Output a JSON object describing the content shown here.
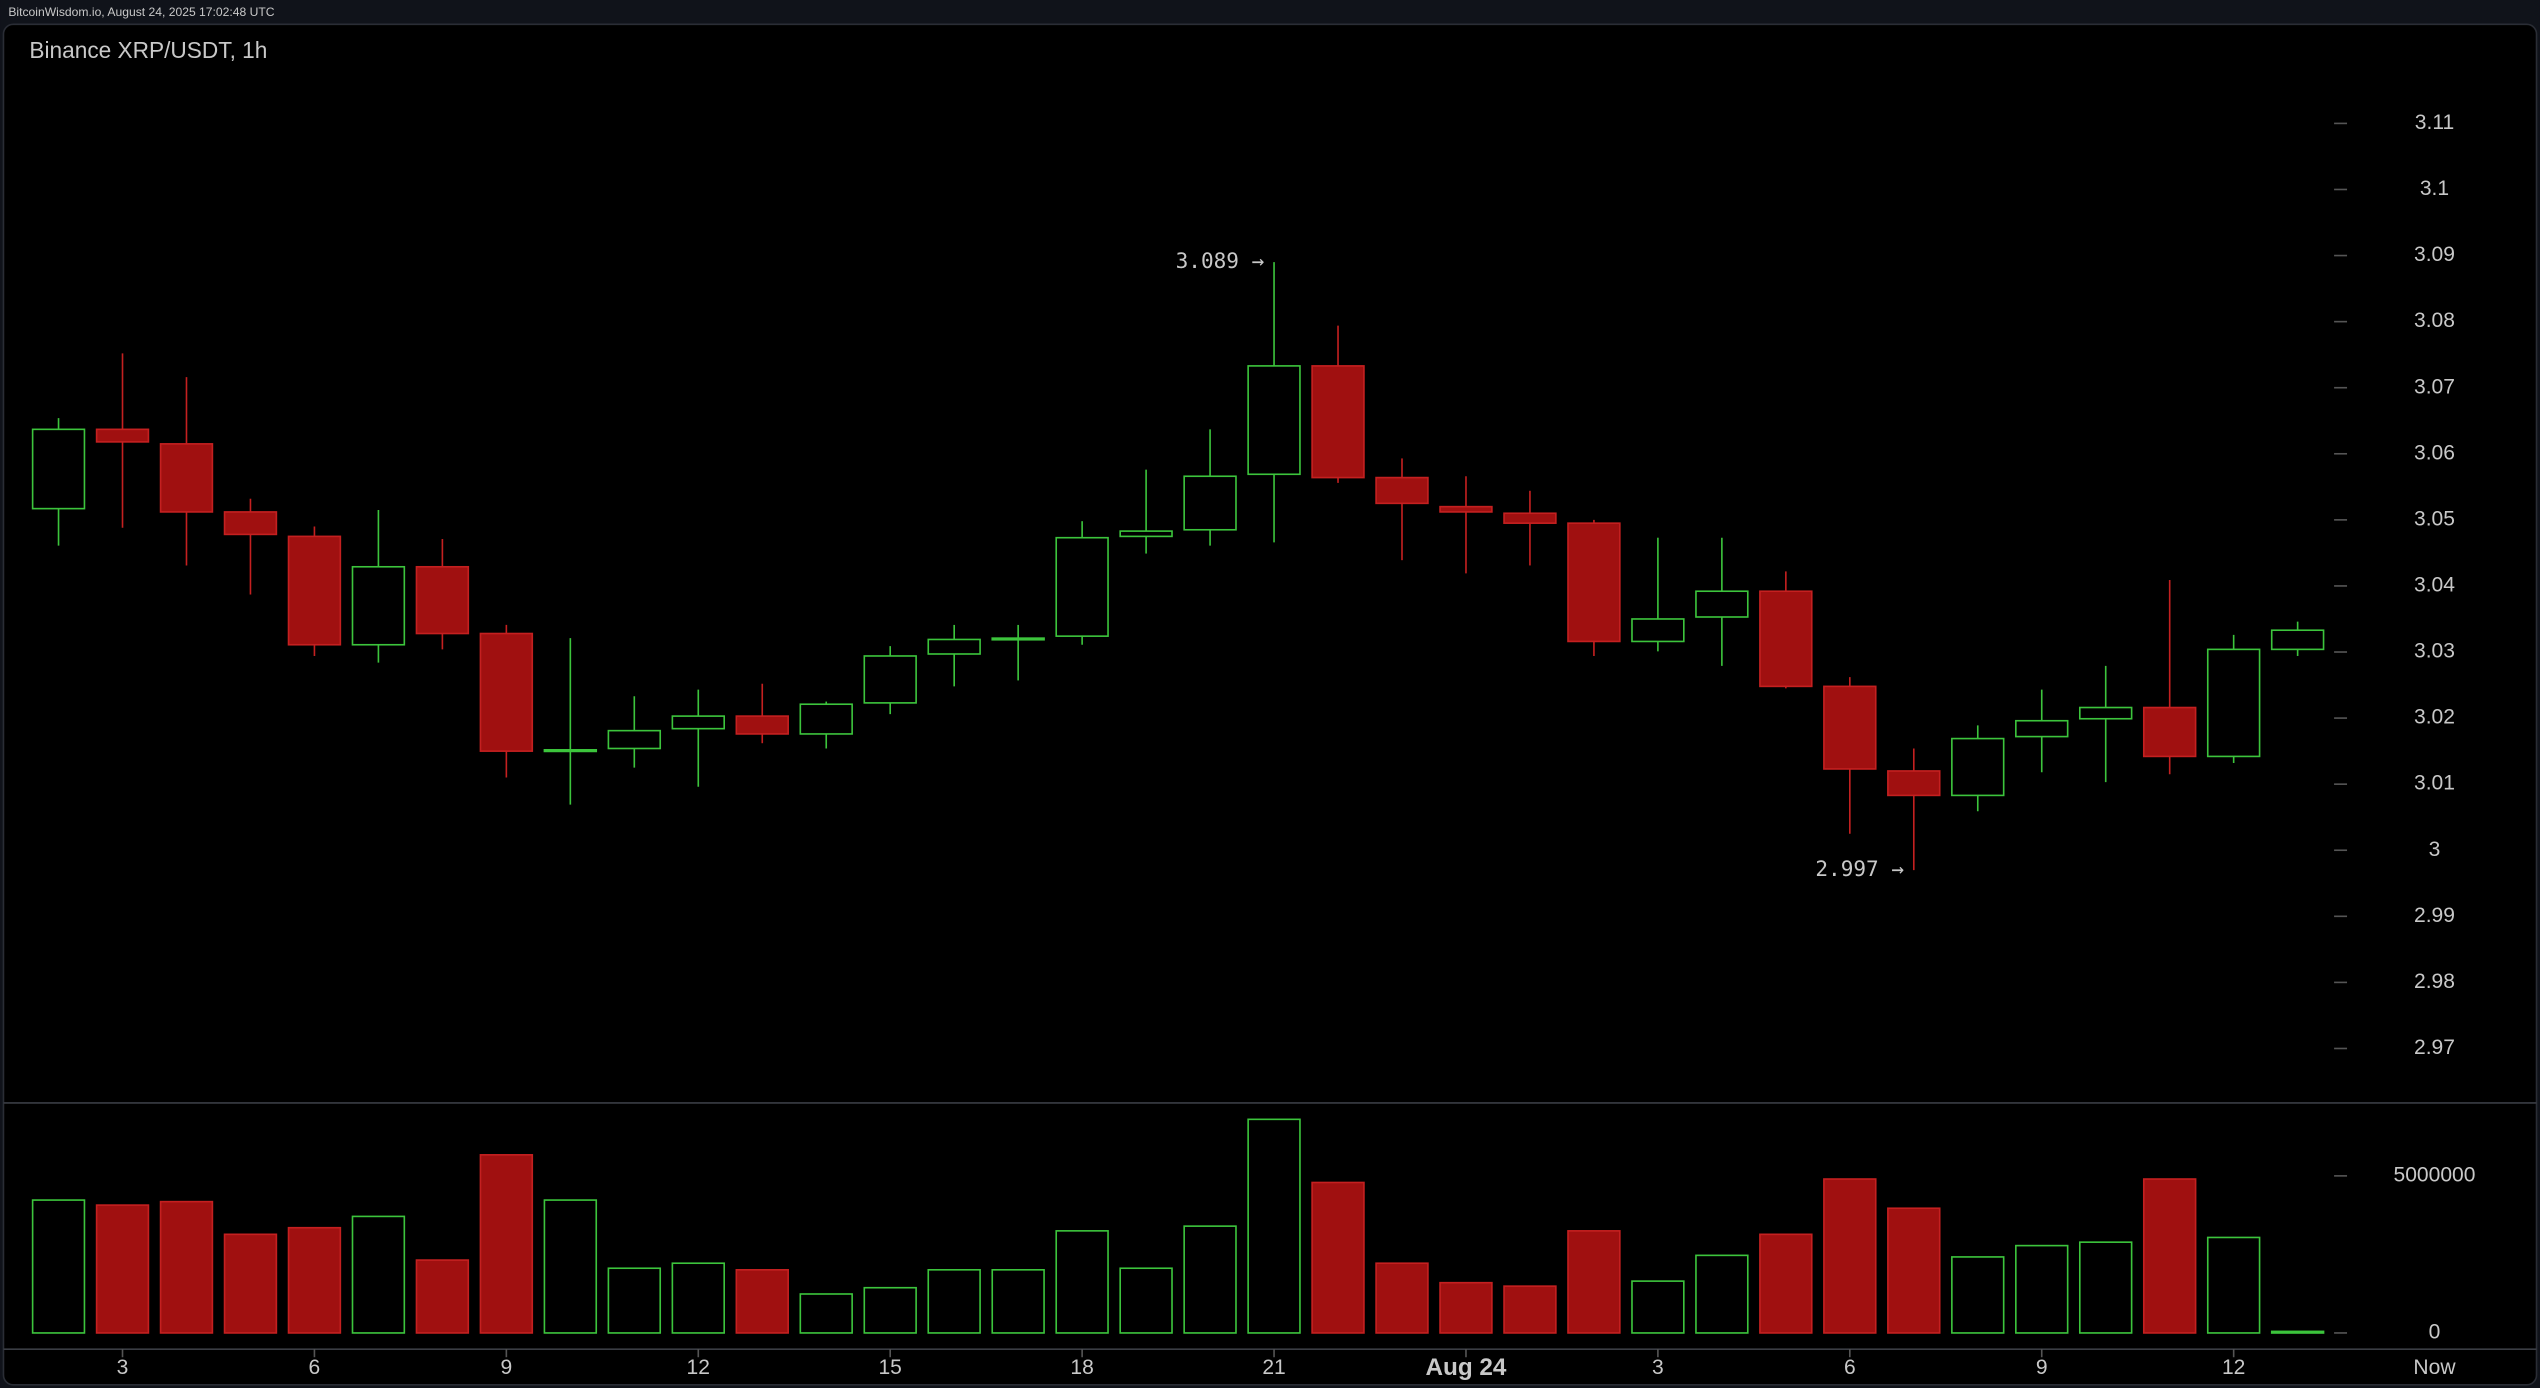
{
  "header": "BitcoinWisdom.io, August 24, 2025 17:02:48 UTC",
  "chart_data": [
    {
      "type": "candlestick",
      "title": "Binance XRP/USDT, 1h",
      "categories": [
        null,
        "3",
        null,
        null,
        "6",
        null,
        null,
        "9",
        null,
        null,
        "12",
        null,
        null,
        "15",
        null,
        null,
        "18",
        null,
        null,
        "21",
        null,
        null,
        "Aug 24",
        null,
        null,
        "3",
        null,
        null,
        "6",
        null,
        null,
        "9",
        null,
        null,
        "12",
        null
      ],
      "now_label": "Now",
      "open": [
        3.0517,
        3.0637,
        3.0615,
        3.0512,
        3.0475,
        3.0311,
        3.0429,
        3.0328,
        3.015,
        3.0154,
        3.0184,
        3.0203,
        3.0176,
        3.0223,
        3.0297,
        3.0319,
        3.0324,
        3.0475,
        3.0485,
        3.0569,
        3.0733,
        3.0564,
        3.052,
        3.051,
        3.0495,
        3.0316,
        3.0353,
        3.0392,
        3.0248,
        3.012,
        3.0083,
        3.0172,
        3.0199,
        3.0216,
        3.0142,
        3.0304
      ],
      "high": [
        3.0654,
        3.0752,
        3.0716,
        3.0532,
        3.049,
        3.0515,
        3.0471,
        3.0341,
        3.0321,
        3.0233,
        3.0243,
        3.0252,
        3.0225,
        3.0309,
        3.0341,
        3.0341,
        3.0498,
        3.0576,
        3.0637,
        3.089,
        3.0794,
        3.0593,
        3.0566,
        3.0544,
        3.05,
        3.0473,
        3.0473,
        3.0422,
        3.0262,
        3.0154,
        3.0189,
        3.0243,
        3.0279,
        3.0409,
        3.0326,
        3.0346
      ],
      "low": [
        3.0461,
        3.0488,
        3.0431,
        3.0387,
        3.0294,
        3.0284,
        3.0304,
        3.011,
        3.0069,
        3.0125,
        3.0096,
        3.0162,
        3.0154,
        3.0206,
        3.0248,
        3.0257,
        3.0311,
        3.0449,
        3.0461,
        3.0466,
        3.0556,
        3.0439,
        3.0419,
        3.0431,
        3.0294,
        3.0301,
        3.0279,
        3.0245,
        3.0025,
        2.997,
        3.0059,
        3.0118,
        3.0103,
        3.0115,
        3.0132,
        3.0294
      ],
      "close": [
        3.0637,
        3.0618,
        3.0512,
        3.0478,
        3.0311,
        3.0429,
        3.0328,
        3.015,
        3.0152,
        3.0181,
        3.0203,
        3.0176,
        3.0221,
        3.0294,
        3.0319,
        3.0321,
        3.0473,
        3.0483,
        3.0566,
        3.0733,
        3.0564,
        3.0525,
        3.0512,
        3.0495,
        3.0316,
        3.035,
        3.0392,
        3.0248,
        3.0123,
        3.0083,
        3.0169,
        3.0196,
        3.0216,
        3.0142,
        3.0304,
        3.0333
      ],
      "up_color": "#3cc43c",
      "down_color": "#a01010",
      "annotations": {
        "high_label": "3.089 →",
        "low_label": "2.997 →"
      },
      "ylim": [
        2.962,
        3.125
      ],
      "yticks": [
        2.97,
        2.98,
        2.99,
        3,
        3.01,
        3.02,
        3.03,
        3.04,
        3.05,
        3.06,
        3.07,
        3.08,
        3.09,
        3.1,
        3.11
      ]
    },
    {
      "type": "bar",
      "values": [
        4230000,
        4070000,
        4180000,
        3140000,
        3350000,
        3710000,
        2320000,
        5670000,
        4230000,
        2060000,
        2220000,
        2010000,
        1240000,
        1440000,
        2010000,
        2010000,
        3250000,
        2060000,
        3400000,
        6800000,
        4790000,
        2220000,
        1600000,
        1490000,
        3250000,
        1650000,
        2470000,
        3140000,
        4900000,
        3970000,
        2420000,
        2780000,
        2890000,
        4900000,
        3040000,
        50000
      ],
      "ylim": [
        -515000,
        7270000
      ],
      "yticks": [
        0,
        5000000
      ]
    }
  ]
}
